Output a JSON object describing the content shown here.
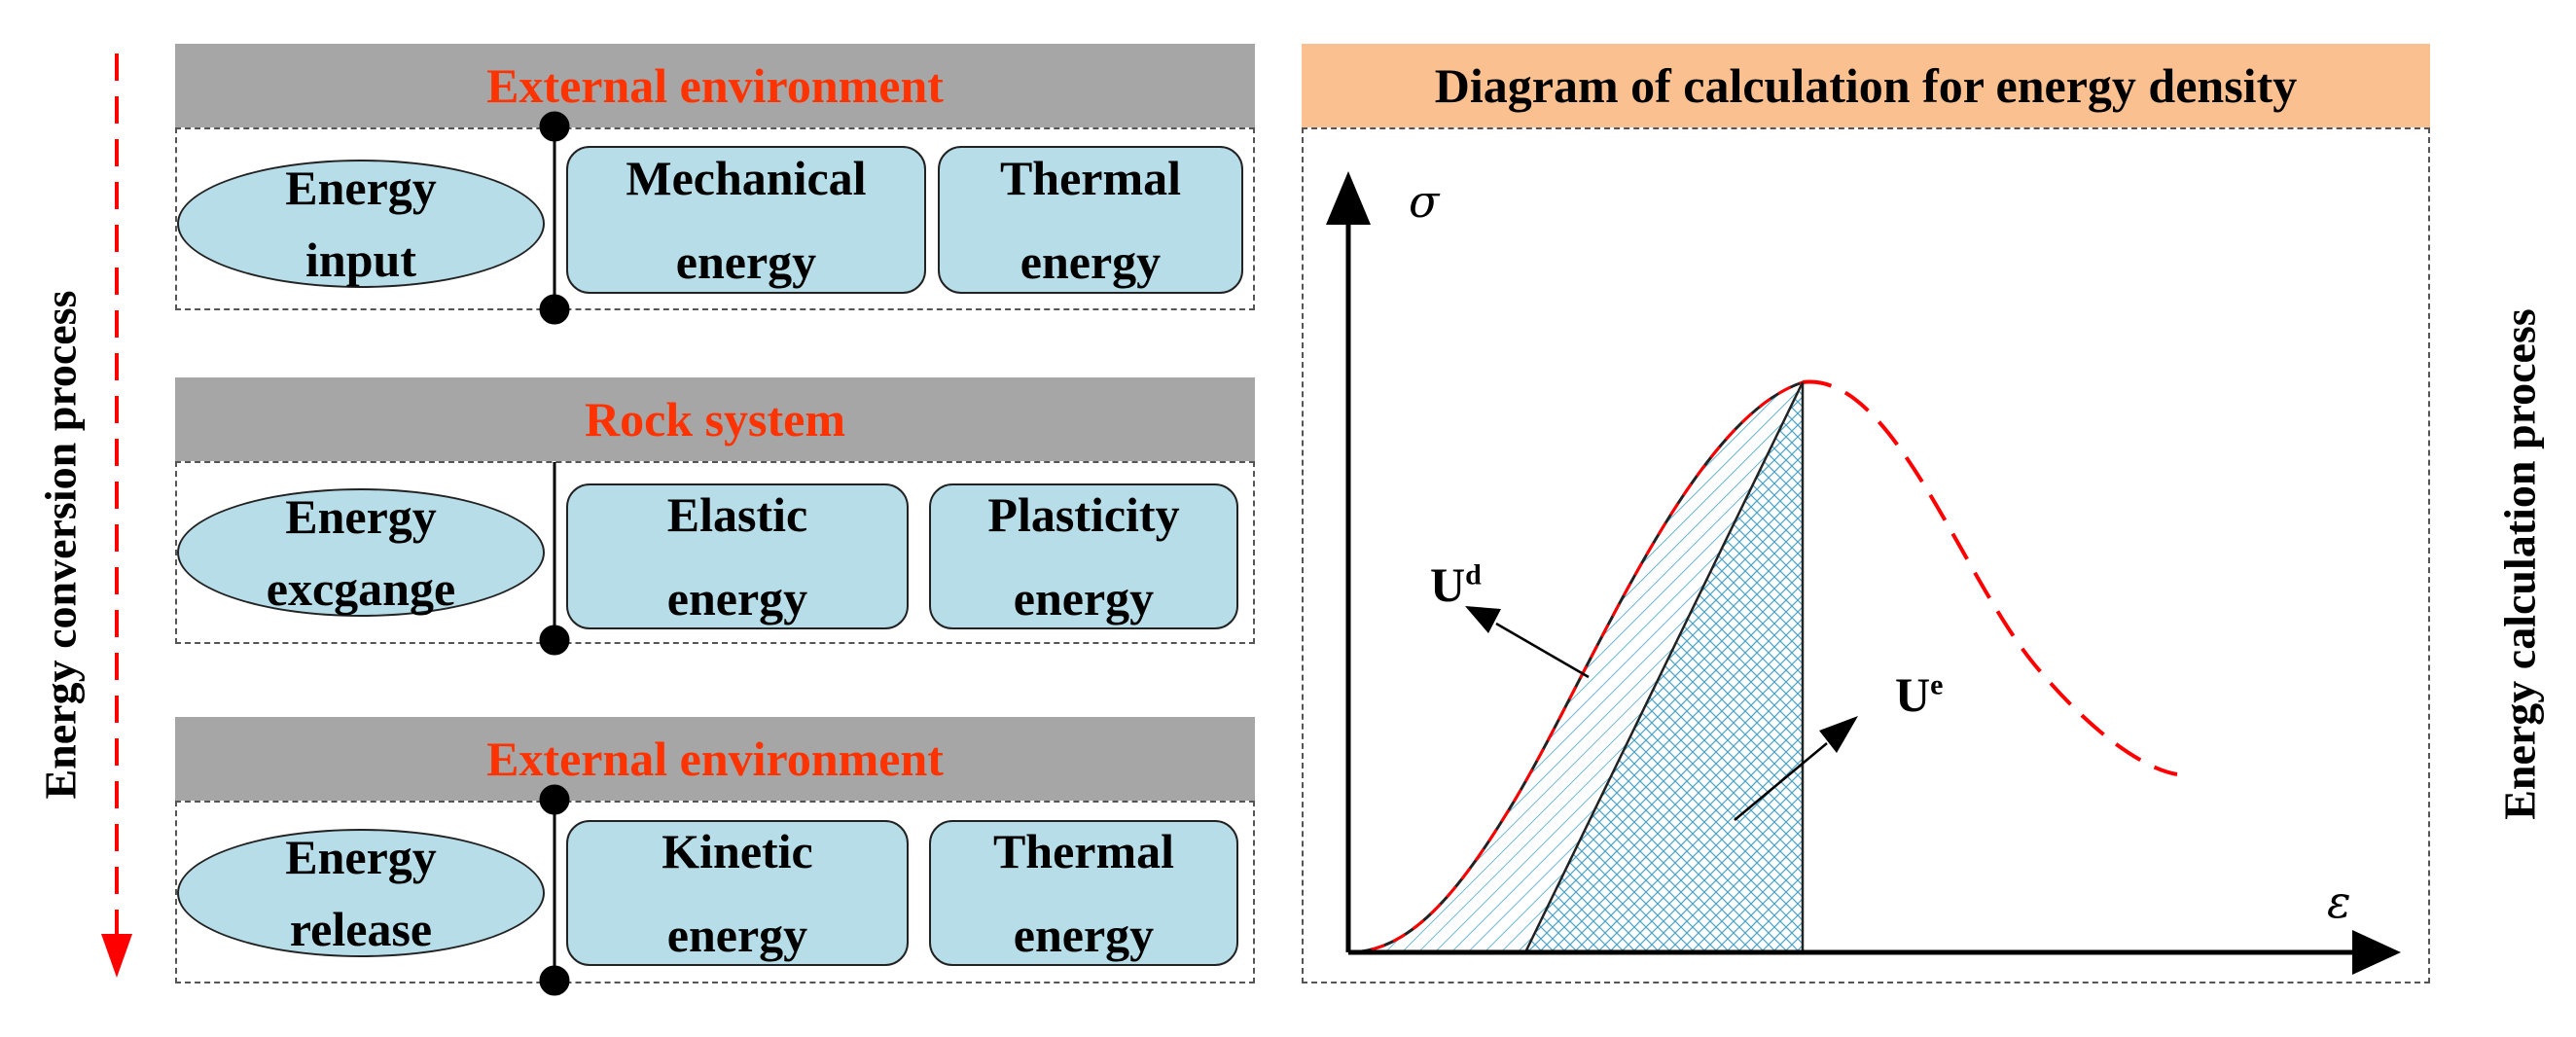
{
  "left_axis_label": "Energy conversion process",
  "right_axis_label": "Energy calculation process",
  "sections": [
    {
      "header": "External environment",
      "ellipse": "Energy\ninput",
      "boxes": [
        "Mechanical\nenergy",
        "Thermal\nenergy"
      ]
    },
    {
      "header": "Rock system",
      "ellipse": "Energy\nexcgange",
      "boxes": [
        "Elastic\nenergy",
        "Plasticity\nenergy"
      ]
    },
    {
      "header": "External environment",
      "ellipse": "Energy\nrelease",
      "boxes": [
        "Kinetic\nenergy",
        "Thermal\nenergy"
      ]
    }
  ],
  "chart": {
    "title": "Diagram of calculation for energy density",
    "y_axis_symbol": "σ",
    "x_axis_symbol": "ε",
    "ud_label": "U",
    "ud_sup": "d",
    "ue_label": "U",
    "ue_sup": "e"
  },
  "colors": {
    "header_gray": "#a6a6a6",
    "header_text_red": "#ff3300",
    "node_fill": "#b6dde8",
    "chart_header": "#fac090",
    "dashed_red": "#ff0000",
    "hatch": "#4aa3c4"
  }
}
